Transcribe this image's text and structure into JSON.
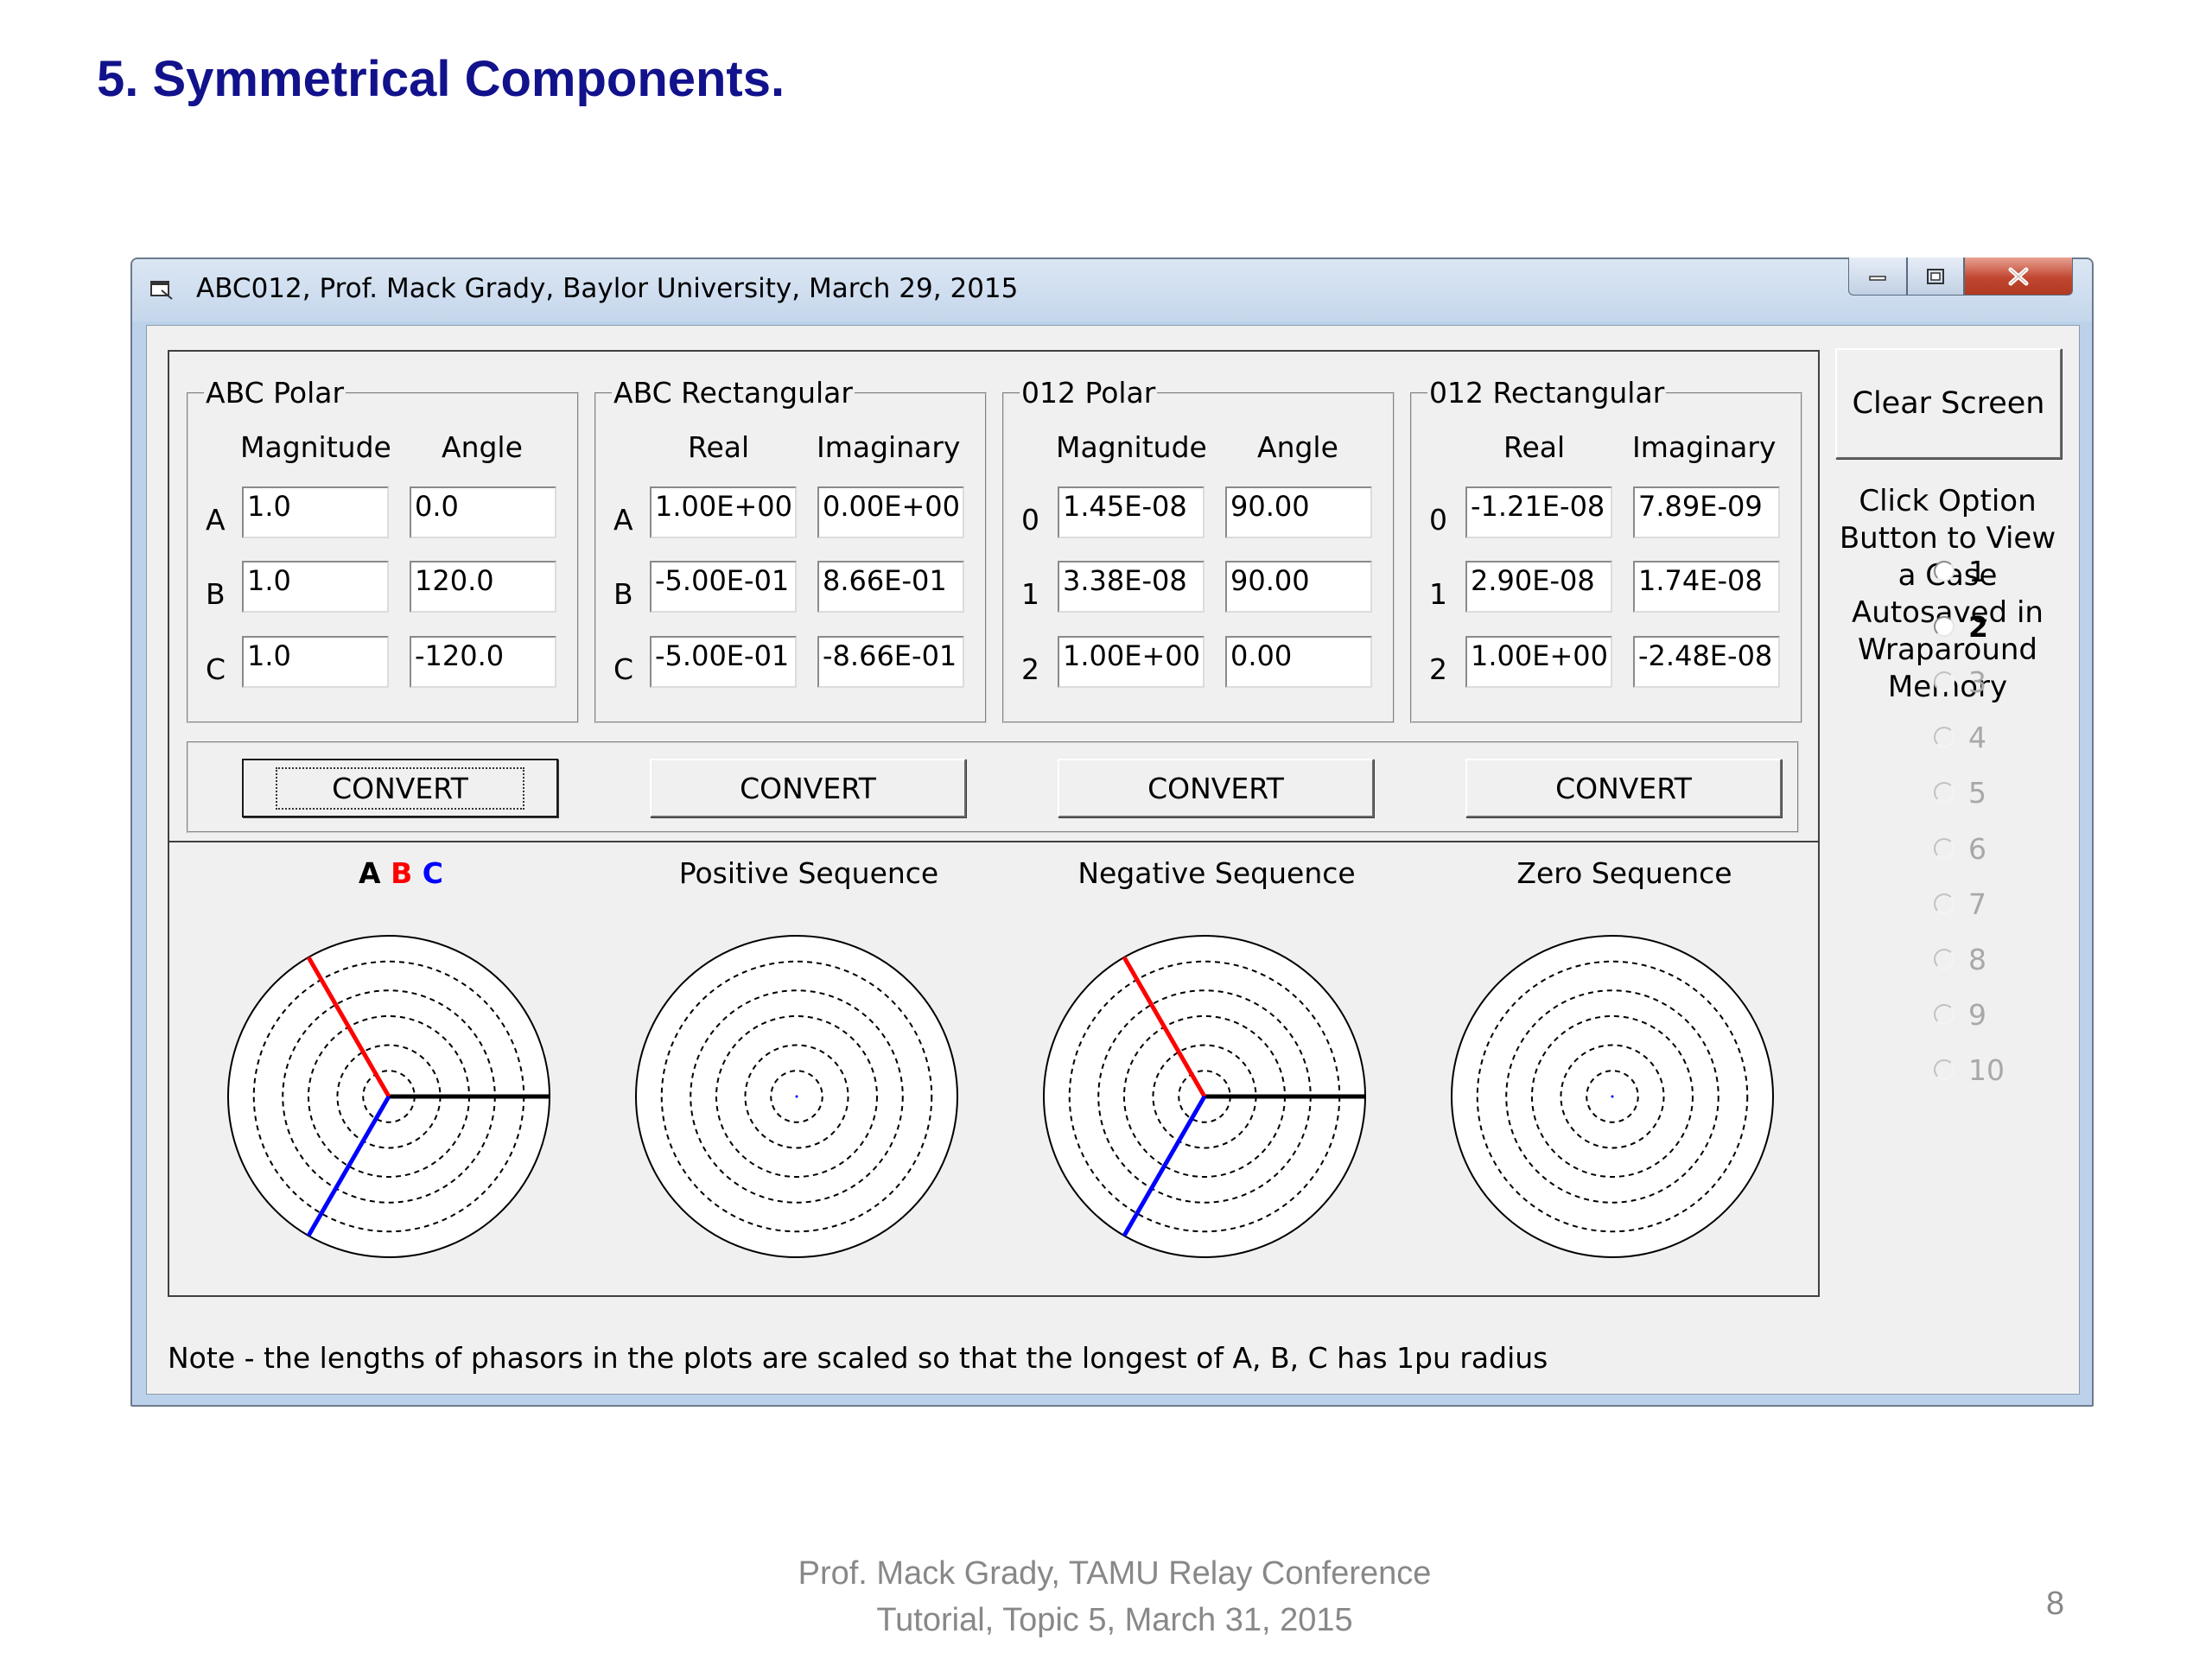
{
  "slide": {
    "title": "5.  Symmetrical Components.",
    "footer_line1": "Prof. Mack Grady, TAMU Relay Conference",
    "footer_line2": "Tutorial, Topic 5, March 31, 2015",
    "page_number": "8"
  },
  "window": {
    "title": "ABC012, Prof. Mack Grady, Baylor University, March 29, 2015"
  },
  "groups": [
    {
      "title": "ABC Polar",
      "col1": "Magnitude",
      "col2": "Angle",
      "rows": [
        {
          "label": "A",
          "v1": "1.0",
          "v2": "0.0"
        },
        {
          "label": "B",
          "v1": "1.0",
          "v2": "120.0"
        },
        {
          "label": "C",
          "v1": "1.0",
          "v2": "-120.0"
        }
      ]
    },
    {
      "title": "ABC Rectangular",
      "col1": "Real",
      "col2": "Imaginary",
      "rows": [
        {
          "label": "A",
          "v1": "1.00E+00",
          "v2": "0.00E+00"
        },
        {
          "label": "B",
          "v1": "-5.00E-01",
          "v2": "8.66E-01"
        },
        {
          "label": "C",
          "v1": "-5.00E-01",
          "v2": "-8.66E-01"
        }
      ]
    },
    {
      "title": "012 Polar",
      "col1": "Magnitude",
      "col2": "Angle",
      "rows": [
        {
          "label": "0",
          "v1": "1.45E-08",
          "v2": "90.00"
        },
        {
          "label": "1",
          "v1": "3.38E-08",
          "v2": "90.00"
        },
        {
          "label": "2",
          "v1": "1.00E+00",
          "v2": "0.00"
        }
      ]
    },
    {
      "title": "012 Rectangular",
      "col1": "Real",
      "col2": "Imaginary",
      "rows": [
        {
          "label": "0",
          "v1": "-1.21E-08",
          "v2": "7.89E-09"
        },
        {
          "label": "1",
          "v1": "2.90E-08",
          "v2": "1.74E-08"
        },
        {
          "label": "2",
          "v1": "1.00E+00",
          "v2": "-2.48E-08"
        }
      ]
    }
  ],
  "convert_label": "CONVERT",
  "plots": {
    "abc_a": "A",
    "abc_b": "B",
    "abc_c": "C",
    "abc_colors": {
      "a": "#000000",
      "b": "#ff0000",
      "c": "#0000ff"
    },
    "positive": "Positive Sequence",
    "negative": "Negative Sequence",
    "zero": "Zero Sequence",
    "phasors": {
      "abc": [
        {
          "name": "A",
          "mag": 1.0,
          "angle": 0,
          "color": "#000000"
        },
        {
          "name": "B",
          "mag": 1.0,
          "angle": 120,
          "color": "#ff0000"
        },
        {
          "name": "C",
          "mag": 1.0,
          "angle": -120,
          "color": "#0000ff"
        }
      ],
      "positive": [],
      "negative": [
        {
          "name": "A",
          "mag": 1.0,
          "angle": 0,
          "color": "#000000"
        },
        {
          "name": "B",
          "mag": 1.0,
          "angle": 120,
          "color": "#ff0000"
        },
        {
          "name": "C",
          "mag": 1.0,
          "angle": -120,
          "color": "#0000ff"
        }
      ],
      "zero": []
    }
  },
  "sidebar": {
    "clear_label": "Clear Screen",
    "help_text": "Click Option Button to View a Case Autosaved in Wraparound Memory",
    "cases": [
      {
        "label": "1",
        "enabled": true,
        "bold": false
      },
      {
        "label": "2",
        "enabled": true,
        "bold": true
      },
      {
        "label": "3",
        "enabled": false,
        "bold": false
      },
      {
        "label": "4",
        "enabled": false,
        "bold": false
      },
      {
        "label": "5",
        "enabled": false,
        "bold": false
      },
      {
        "label": "6",
        "enabled": false,
        "bold": false
      },
      {
        "label": "7",
        "enabled": false,
        "bold": false
      },
      {
        "label": "8",
        "enabled": false,
        "bold": false
      },
      {
        "label": "9",
        "enabled": false,
        "bold": false
      },
      {
        "label": "10",
        "enabled": false,
        "bold": false
      }
    ]
  },
  "note": "Note - the lengths of phasors in the plots are scaled so that the longest of A, B, C has 1pu radius"
}
